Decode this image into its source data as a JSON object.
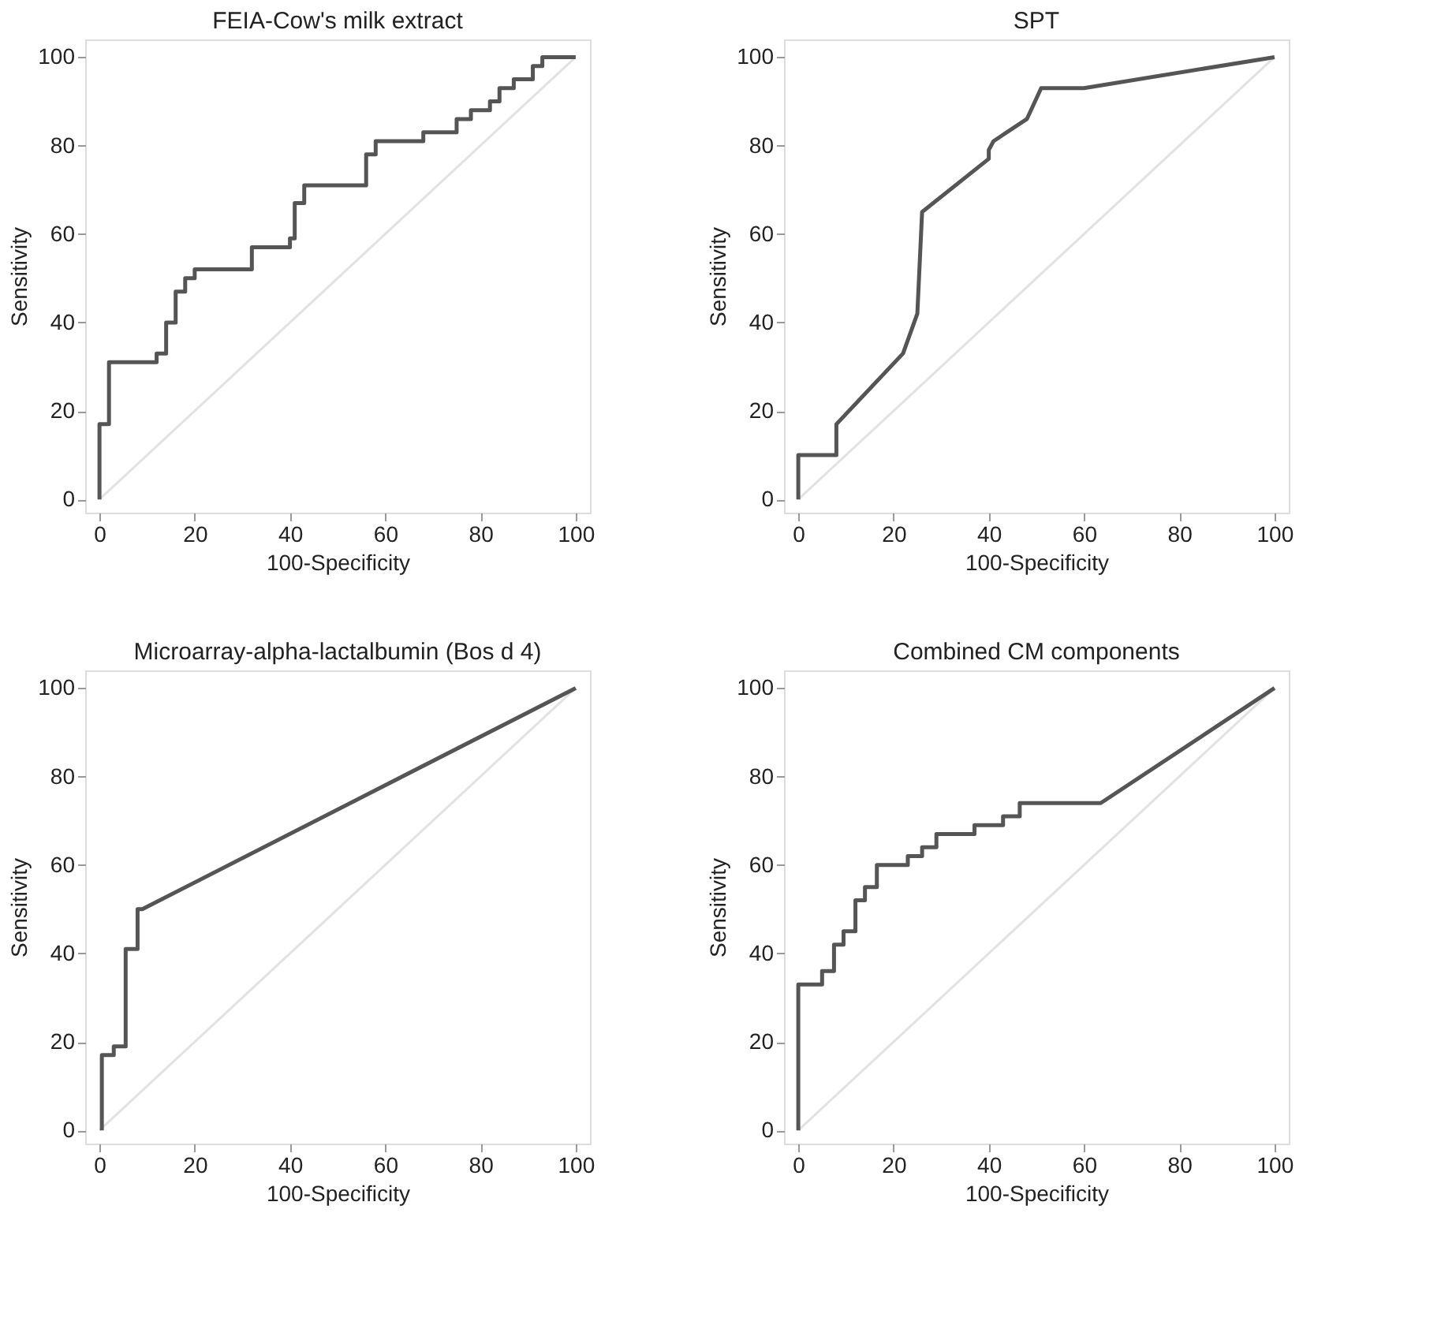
{
  "chart_data": [
    {
      "type": "line",
      "title": "FEIA-Cow's milk extract",
      "xlabel": "100-Specificity",
      "ylabel": "Sensitivity",
      "xlim": [
        -3,
        103
      ],
      "ylim": [
        -3,
        104
      ],
      "xticks": [
        0,
        20,
        40,
        60,
        80,
        100
      ],
      "yticks": [
        0,
        20,
        40,
        60,
        80,
        100
      ],
      "series": [
        {
          "color": "#e2e2e2",
          "x": [
            0,
            100
          ],
          "values": [
            0,
            100
          ]
        },
        {
          "color": "#555555",
          "x": [
            0,
            0,
            2,
            2,
            12,
            12,
            14,
            14,
            16,
            16,
            18,
            18,
            20,
            20,
            32,
            32,
            40,
            40,
            41,
            41,
            43,
            43,
            56,
            56,
            58,
            58,
            68,
            68,
            75,
            75,
            78,
            78,
            82,
            82,
            84,
            84,
            87,
            87,
            91,
            91,
            93,
            93,
            100
          ],
          "values": [
            0,
            17,
            17,
            31,
            31,
            33,
            33,
            40,
            40,
            47,
            47,
            50,
            50,
            52,
            52,
            57,
            57,
            59,
            59,
            67,
            67,
            71,
            71,
            78,
            78,
            81,
            81,
            83,
            83,
            86,
            86,
            88,
            88,
            90,
            90,
            93,
            93,
            95,
            95,
            98,
            98,
            100,
            100
          ]
        }
      ]
    },
    {
      "type": "line",
      "title": "SPT",
      "xlabel": "100-Specificity",
      "ylabel": "Sensitivity",
      "xlim": [
        -3,
        103
      ],
      "ylim": [
        -3,
        104
      ],
      "xticks": [
        0,
        20,
        40,
        60,
        80,
        100
      ],
      "yticks": [
        0,
        20,
        40,
        60,
        80,
        100
      ],
      "series": [
        {
          "color": "#e2e2e2",
          "x": [
            0,
            100
          ],
          "values": [
            0,
            100
          ]
        },
        {
          "color": "#555555",
          "x": [
            0,
            0,
            8,
            8,
            22,
            25,
            26,
            40,
            40,
            41,
            48,
            51,
            60,
            100
          ],
          "values": [
            0,
            10,
            10,
            17,
            33,
            42,
            65,
            77,
            79,
            81,
            86,
            93,
            93,
            100
          ]
        }
      ]
    },
    {
      "type": "line",
      "title": "Microarray-alpha-lactalbumin (Bos d 4)",
      "xlabel": "100-Specificity",
      "ylabel": "Sensitivity",
      "xlim": [
        -3,
        103
      ],
      "ylim": [
        -3,
        104
      ],
      "xticks": [
        0,
        20,
        40,
        60,
        80,
        100
      ],
      "yticks": [
        0,
        20,
        40,
        60,
        80,
        100
      ],
      "series": [
        {
          "color": "#e2e2e2",
          "x": [
            0,
            100
          ],
          "values": [
            0,
            100
          ]
        },
        {
          "color": "#555555",
          "x": [
            0.5,
            0.5,
            3,
            3,
            5.5,
            5.5,
            8,
            8,
            9,
            100
          ],
          "values": [
            0,
            17,
            17,
            19,
            19,
            41,
            41,
            50,
            50,
            100
          ]
        }
      ]
    },
    {
      "type": "line",
      "title": "Combined CM components",
      "xlabel": "100-Specificity",
      "ylabel": "Sensitivity",
      "xlim": [
        -3,
        103
      ],
      "ylim": [
        -3,
        104
      ],
      "xticks": [
        0,
        20,
        40,
        60,
        80,
        100
      ],
      "yticks": [
        0,
        20,
        40,
        60,
        80,
        100
      ],
      "series": [
        {
          "color": "#e2e2e2",
          "x": [
            0,
            100
          ],
          "values": [
            0,
            100
          ]
        },
        {
          "color": "#555555",
          "x": [
            0,
            0,
            5,
            5,
            7.5,
            7.5,
            9.5,
            9.5,
            12,
            12,
            14,
            14,
            16.5,
            16.5,
            23,
            23,
            26,
            26,
            29,
            29,
            37,
            37,
            43,
            43,
            46.5,
            46.5,
            63.5,
            100
          ],
          "values": [
            0,
            33,
            33,
            36,
            36,
            42,
            42,
            45,
            45,
            52,
            52,
            55,
            55,
            60,
            60,
            62,
            62,
            64,
            64,
            67,
            67,
            69,
            69,
            71,
            71,
            74,
            74,
            100
          ]
        }
      ]
    }
  ]
}
